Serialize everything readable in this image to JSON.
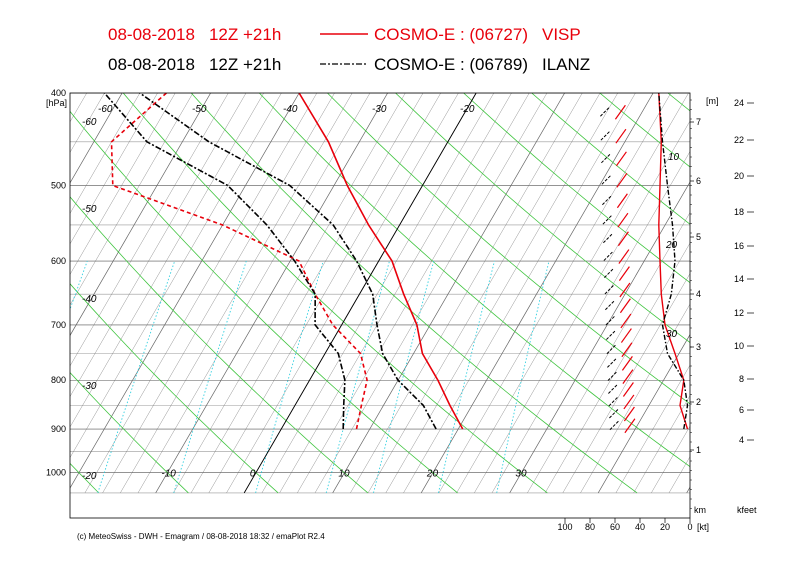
{
  "header": {
    "line1": {
      "date": "08-08-2018",
      "run": "12Z +21h",
      "model": "COSMO-E : (06727)",
      "station": "VISP",
      "color": "#e8000b"
    },
    "line2": {
      "date": "08-08-2018",
      "run": "12Z +21h",
      "model": "COSMO-E : (06789)",
      "station": "ILANZ",
      "color": "#000000"
    }
  },
  "footer": "(c) MeteoSwiss - DWH - Emagram / 08-08-2018  18:32 / emaPlot R2.4",
  "chart_data": {
    "type": "line",
    "y_axis_left": {
      "label_top": "[hPa]",
      "ticks": [
        400,
        500,
        600,
        700,
        800,
        900,
        1000
      ],
      "range": [
        400,
        1050
      ],
      "scale": "log"
    },
    "x_axis": {
      "temperature_ticks": [
        -10,
        0,
        10,
        20,
        30
      ],
      "range": [
        -60,
        40
      ]
    },
    "isotherm_labels": [
      -60,
      -60,
      -50,
      -40,
      -30,
      -20,
      -50,
      -40,
      -30,
      -20,
      10,
      0,
      -10,
      10,
      20,
      30
    ],
    "y_axis_right_km": {
      "label_top": "[m]",
      "label_bottom": "km",
      "ticks": [
        1,
        2,
        3,
        4,
        5,
        6,
        7
      ]
    },
    "y_axis_right_kfeet": {
      "label_bottom": "kfeet",
      "ticks": [
        4,
        6,
        8,
        10,
        12,
        14,
        16,
        18,
        20,
        22,
        24
      ]
    },
    "wind_axis": {
      "label": "[kt]",
      "ticks": [
        100,
        80,
        60,
        40,
        20,
        0
      ]
    },
    "mixing_ratio_labels": [
      10,
      20,
      30
    ],
    "series": [
      {
        "name": "VISP",
        "color": "#e8000b",
        "style": "solid",
        "temperature": [
          {
            "p": 900,
            "t": 20.5
          },
          {
            "p": 850,
            "t": 17.5
          },
          {
            "p": 800,
            "t": 14.5
          },
          {
            "p": 750,
            "t": 11.0
          },
          {
            "p": 700,
            "t": 8.5
          },
          {
            "p": 650,
            "t": 5.0
          },
          {
            "p": 600,
            "t": 1.5
          },
          {
            "p": 550,
            "t": -3.5
          },
          {
            "p": 500,
            "t": -8.5
          },
          {
            "p": 450,
            "t": -13.5
          },
          {
            "p": 400,
            "t": -20.0
          }
        ],
        "dewpoint": [
          {
            "p": 900,
            "t": 8.5
          },
          {
            "p": 850,
            "t": 7.5
          },
          {
            "p": 800,
            "t": 6.5
          },
          {
            "p": 750,
            "t": 4.0
          },
          {
            "p": 700,
            "t": -1.0
          },
          {
            "p": 650,
            "t": -5.0
          },
          {
            "p": 600,
            "t": -9.0
          },
          {
            "p": 550,
            "t": -20.0
          },
          {
            "p": 500,
            "t": -35.0
          },
          {
            "p": 450,
            "t": -38.0
          },
          {
            "p": 400,
            "t": -35.0
          }
        ]
      },
      {
        "name": "ILANZ",
        "color": "#000000",
        "style": "dash-dot",
        "temperature": [
          {
            "p": 900,
            "t": 17.5
          },
          {
            "p": 850,
            "t": 14.5
          },
          {
            "p": 800,
            "t": 10.0
          },
          {
            "p": 750,
            "t": 6.5
          },
          {
            "p": 700,
            "t": 4.0
          },
          {
            "p": 650,
            "t": 1.5
          },
          {
            "p": 600,
            "t": -2.5
          },
          {
            "p": 550,
            "t": -7.5
          },
          {
            "p": 500,
            "t": -15.0
          },
          {
            "p": 450,
            "t": -27.0
          },
          {
            "p": 400,
            "t": -38.0
          }
        ],
        "dewpoint": [
          {
            "p": 900,
            "t": 7.0
          },
          {
            "p": 850,
            "t": 5.5
          },
          {
            "p": 800,
            "t": 4.0
          },
          {
            "p": 750,
            "t": 1.5
          },
          {
            "p": 700,
            "t": -3.0
          },
          {
            "p": 650,
            "t": -5.0
          },
          {
            "p": 600,
            "t": -9.5
          },
          {
            "p": 550,
            "t": -15.0
          },
          {
            "p": 500,
            "t": -22.0
          },
          {
            "p": 450,
            "t": -34.0
          },
          {
            "p": 400,
            "t": -42.0
          }
        ]
      }
    ],
    "wind_speed_series": [
      {
        "name": "VISP",
        "color": "#e8000b",
        "points": [
          {
            "p": 900,
            "v": 2
          },
          {
            "p": 850,
            "v": 8
          },
          {
            "p": 800,
            "v": 5
          },
          {
            "p": 750,
            "v": 12
          },
          {
            "p": 700,
            "v": 20
          },
          {
            "p": 650,
            "v": 23
          },
          {
            "p": 600,
            "v": 24
          },
          {
            "p": 550,
            "v": 25
          },
          {
            "p": 500,
            "v": 24
          },
          {
            "p": 450,
            "v": 23
          },
          {
            "p": 400,
            "v": 25
          }
        ]
      },
      {
        "name": "ILANZ",
        "color": "#000000",
        "points": [
          {
            "p": 900,
            "v": 5
          },
          {
            "p": 850,
            "v": 2
          },
          {
            "p": 800,
            "v": 5
          },
          {
            "p": 750,
            "v": 18
          },
          {
            "p": 700,
            "v": 22
          },
          {
            "p": 650,
            "v": 15
          },
          {
            "p": 600,
            "v": 12
          },
          {
            "p": 550,
            "v": 14
          },
          {
            "p": 500,
            "v": 18
          },
          {
            "p": 450,
            "v": 22
          },
          {
            "p": 400,
            "v": 25
          }
        ]
      }
    ]
  }
}
